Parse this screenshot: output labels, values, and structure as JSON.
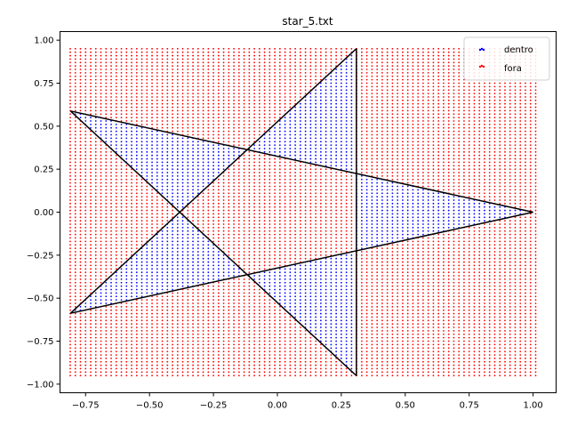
{
  "chart_data": {
    "type": "scatter",
    "title": "star_5.txt",
    "xlabel": "",
    "ylabel": "",
    "xlim": [
      -0.85,
      1.09
    ],
    "ylim": [
      -1.05,
      1.05
    ],
    "x_ticks": [
      -0.75,
      -0.5,
      -0.25,
      0.0,
      0.25,
      0.5,
      0.75,
      1.0
    ],
    "x_tick_labels": [
      "−0.75",
      "−0.50",
      "−0.25",
      "0.00",
      "0.25",
      "0.50",
      "0.75",
      "1.00"
    ],
    "y_ticks": [
      -1.0,
      -0.75,
      -0.5,
      -0.25,
      0.0,
      0.25,
      0.5,
      0.75,
      1.0
    ],
    "y_tick_labels": [
      "−1.00",
      "−0.75",
      "−0.50",
      "−0.25",
      "0.00",
      "0.25",
      "0.50",
      "0.75",
      "1.00"
    ],
    "grid": false,
    "legend_position": "top-right",
    "point_grid": {
      "x_range": [
        -0.81,
        1.0
      ],
      "y_range": [
        -0.95,
        0.95
      ],
      "step": 0.02
    },
    "series": [
      {
        "name": "dentro",
        "color": "#0000ff",
        "marker": "point",
        "description_rule": "inside polygon"
      },
      {
        "name": "fora",
        "color": "#ff0000",
        "marker": "point",
        "description_rule": "outside polygon"
      }
    ],
    "polygon": {
      "color": "#000000",
      "vertices": [
        [
          1.0,
          0.0
        ],
        [
          -0.809,
          0.588
        ],
        [
          0.309,
          -0.951
        ],
        [
          0.309,
          0.951
        ],
        [
          -0.809,
          -0.588
        ],
        [
          1.0,
          0.0
        ]
      ]
    }
  }
}
